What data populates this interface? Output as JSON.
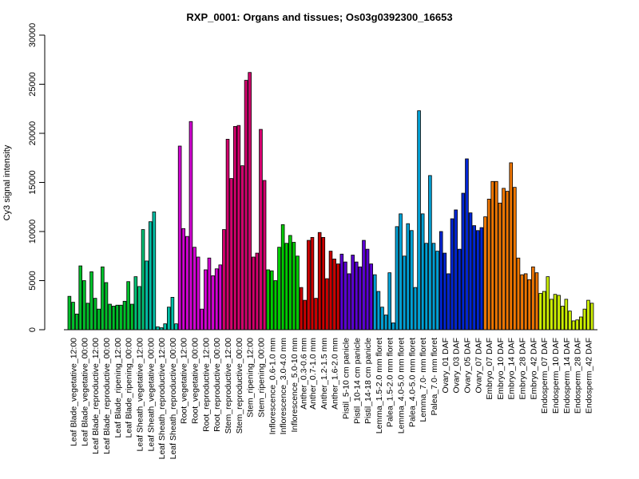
{
  "chart_data": {
    "type": "bar",
    "title": "RXP_0001: Organs and tissues; Os03g0392300_16653",
    "ylabel": "Cy3 signal intensity",
    "xlabel": "",
    "ylim": [
      0,
      30000
    ],
    "yticks": [
      0,
      5000,
      10000,
      15000,
      20000,
      25000,
      30000
    ],
    "grid": false,
    "legend": "none",
    "categories": [
      "Leaf Blade_vegetative_12:00",
      "Leaf Blade_vegetative_00:00",
      "Leaf Blade_reproductive_12:00",
      "Leaf Blade_reproductive_00:00",
      "Leaf Blade_ripening_12:00",
      "Leaf Blade_ripening_00:00",
      "Leaf Sheath_vegetative_12:00",
      "Leaf Sheath_vegetative_00:00",
      "Leaf Sheath_reproductive_12:00",
      "Leaf Sheath_reproductive_00:00",
      "Root_vegetative_12:00",
      "Root_vegetative_00:00",
      "Root_reproductive_12:00",
      "Root_reproductive_00:00",
      "Stem_reproductive_12:00",
      "Stem_reproductive_00:00",
      "Stem_ripening_12:00",
      "Stem_ripening_00:00",
      "Inflorescence_0.6-1.0 mm",
      "Inflorescence_3.0-4.0 mm",
      "Inflorescence_5.0-10 mm",
      "Anther_0.3-0.6 mm",
      "Anther_0.7-1.0 mm",
      "Anther_1.2-1.5 mm",
      "Anther_1.6-2.0 mm",
      "Pistil_5-10 cm panicle",
      "Pistil_10-14 cm panicle",
      "Pistil_14-18 cm panicle",
      "Lemma_1.5-2.0 mm floret",
      "Palea_1.5-2.0 mm floret",
      "Lemma_4.0-5.0 mm floret",
      "Palea_4.0-5.0 mm floret",
      "Lemma_7.0- mm floret",
      "Palea_7.0- mm floret",
      "Ovary_01 DAF",
      "Ovary_03 DAF",
      "Ovary_05 DAF",
      "Ovary_07 DAF",
      "Embryo_07 DAF",
      "Embryo_10 DAF",
      "Embryo_14 DAF",
      "Embryo_28 DAF",
      "Embryo_42 DAF",
      "Endosperm_07 DAF",
      "Endosperm_10 DAF",
      "Endosperm_14 DAF",
      "Endosperm_28 DAF",
      "Endosperm_42 DAF"
    ],
    "values_per_category": [
      [
        3400,
        2800,
        1600
      ],
      [
        6500,
        5000,
        2700
      ],
      [
        5900,
        3200,
        2100
      ],
      [
        6400,
        4800,
        2600
      ],
      [
        2400,
        2500,
        2500
      ],
      [
        2900,
        4900,
        2600
      ],
      [
        5400,
        4400,
        10200
      ],
      [
        7000,
        11000,
        12000
      ],
      [
        300,
        200,
        600
      ],
      [
        2300,
        3300,
        600
      ],
      [
        18700,
        10300,
        9500
      ],
      [
        21200,
        8400,
        7400
      ],
      [
        2100,
        6100,
        7300
      ],
      [
        5500,
        6200,
        6600
      ],
      [
        10200,
        19400,
        15400
      ],
      [
        20700,
        20800,
        16700
      ],
      [
        25400,
        26200,
        7400
      ],
      [
        7800,
        20400,
        15200
      ],
      [
        6100,
        6000,
        5000
      ],
      [
        8400,
        10700,
        8800
      ],
      [
        9600,
        8900,
        7500
      ],
      [
        4300,
        3000
      ],
      [
        9100,
        9400,
        3200
      ],
      [
        9900,
        9400,
        5200
      ],
      [
        8000,
        7200,
        6700
      ],
      [
        7700,
        6900,
        5700
      ],
      [
        7600,
        6900,
        6400
      ],
      [
        9100,
        8200,
        6700
      ],
      [
        5600,
        3900,
        2300
      ],
      [
        1500,
        5800,
        700
      ],
      [
        10500,
        11800,
        7500
      ],
      [
        10800,
        10100,
        4300
      ],
      [
        22300,
        11800,
        8800
      ],
      [
        15700,
        8800,
        8000
      ],
      [
        10000,
        7800,
        5700
      ],
      [
        11300,
        12200,
        8200
      ],
      [
        13900,
        17400,
        11900
      ],
      [
        10600,
        10100,
        10400
      ],
      [
        11500,
        13300,
        15100
      ],
      [
        15100,
        12900,
        14400
      ],
      [
        14100,
        17000,
        14500
      ],
      [
        7300,
        5600,
        5700
      ],
      [
        5100,
        6400,
        5800
      ],
      [
        3700,
        3900,
        5400
      ],
      [
        3100,
        3600,
        3500
      ],
      [
        2400,
        3100,
        1900
      ],
      [
        900,
        1000,
        1300
      ],
      [
        2100,
        3000,
        2700
      ]
    ],
    "group_colors": [
      "#00bf2a",
      "#00bf2a",
      "#00bf2a",
      "#00bf2a",
      "#00bf2a",
      "#00bf2a",
      "#00bf74",
      "#00bfa6",
      "#00bfa6",
      "#00bfa6",
      "#d400d4",
      "#d400d4",
      "#d400d4",
      "#d400d4",
      "#d4006e",
      "#d4006e",
      "#d4006e",
      "#d4006e",
      "#00cc00",
      "#00cc00",
      "#00cc00",
      "#cc0000",
      "#cc0000",
      "#cc0000",
      "#cc0000",
      "#5b00d4",
      "#5b00d4",
      "#5b00d4",
      "#00a0d4",
      "#00a0d4",
      "#00a0d4",
      "#00a0d4",
      "#00a0d4",
      "#00a0d4",
      "#0026d4",
      "#0026d4",
      "#0026d4",
      "#0026d4",
      "#ee7600",
      "#ee7600",
      "#ee7600",
      "#ee7600",
      "#ee7600",
      "#ccee00",
      "#ccee00",
      "#ccee00",
      "#ccee00",
      "#ccee00"
    ]
  }
}
